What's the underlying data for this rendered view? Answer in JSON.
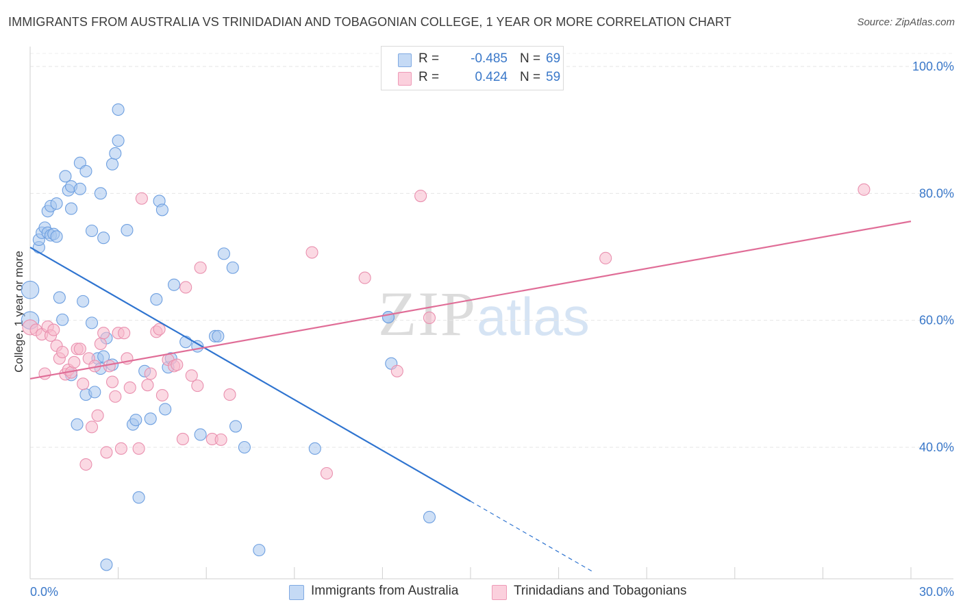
{
  "title": "IMMIGRANTS FROM AUSTRALIA VS TRINIDADIAN AND TOBAGONIAN COLLEGE, 1 YEAR OR MORE CORRELATION CHART",
  "source": "Source: ZipAtlas.com",
  "watermark": {
    "zip": "ZIP",
    "atlas": "atlas"
  },
  "legend": {
    "rows": [
      {
        "r_label": "R =",
        "r_value": "-0.485",
        "n_label": "N =",
        "n_value": "69",
        "color": "#a8c7ef"
      },
      {
        "r_label": "R =",
        "r_value": "0.424",
        "n_label": "N =",
        "n_value": "59",
        "color": "#f7b9cc"
      }
    ]
  },
  "bottom_legend": [
    {
      "label": "Immigrants from Australia",
      "color": "#a8c7ef"
    },
    {
      "label": "Trinidadians and Tobagonians",
      "color": "#f7b9cc"
    }
  ],
  "chart_data": {
    "type": "scatter",
    "title": "IMMIGRANTS FROM AUSTRALIA VS TRINIDADIAN AND TOBAGONIAN COLLEGE, 1 YEAR OR MORE CORRELATION CHART",
    "xlabel": "",
    "ylabel": "College, 1 year or more",
    "xlim": [
      0,
      30
    ],
    "ylim": [
      20,
      103
    ],
    "x_tick_labels": [
      {
        "x": 0,
        "label": "0.0%"
      },
      {
        "x": 30,
        "label": "30.0%"
      }
    ],
    "y_tick_labels": [
      {
        "y": 100,
        "label": "100.0%"
      },
      {
        "y": 80,
        "label": "80.0%"
      },
      {
        "y": 60,
        "label": "60.0%"
      },
      {
        "y": 40,
        "label": "40.0%"
      }
    ],
    "series": [
      {
        "name": "Immigrants from Australia",
        "color": "#6d9fe0",
        "fill": "#a8c7ef",
        "line_color": "#2f74d0",
        "trend": {
          "x0": 0,
          "y0": 71.5,
          "x1": 15,
          "y1": 31.5,
          "dash_to_x": 19.2,
          "dash_to_y": 20.3
        },
        "points": [
          [
            0.0,
            64.8,
            1.5
          ],
          [
            0.0,
            60.0,
            1.5
          ],
          [
            0.3,
            71.5,
            1
          ],
          [
            0.3,
            72.7,
            1
          ],
          [
            0.4,
            73.8,
            1
          ],
          [
            0.5,
            74.6,
            1
          ],
          [
            0.6,
            73.8,
            1
          ],
          [
            0.7,
            73.4,
            1
          ],
          [
            0.6,
            77.2,
            1
          ],
          [
            0.7,
            78.0,
            1
          ],
          [
            0.8,
            73.6,
            1
          ],
          [
            0.9,
            73.2,
            1
          ],
          [
            0.9,
            78.4,
            1
          ],
          [
            1.0,
            63.6,
            1
          ],
          [
            1.1,
            60.1,
            1
          ],
          [
            1.2,
            82.7,
            1
          ],
          [
            1.3,
            80.5,
            1
          ],
          [
            1.4,
            81.1,
            1
          ],
          [
            1.4,
            77.6,
            1
          ],
          [
            1.4,
            51.4,
            1
          ],
          [
            1.6,
            43.6,
            1
          ],
          [
            1.7,
            84.8,
            1
          ],
          [
            1.7,
            80.7,
            1
          ],
          [
            1.8,
            63.0,
            1
          ],
          [
            1.9,
            83.5,
            1
          ],
          [
            1.9,
            48.3,
            1
          ],
          [
            2.1,
            74.1,
            1
          ],
          [
            2.1,
            59.6,
            1
          ],
          [
            2.2,
            48.7,
            1
          ],
          [
            2.3,
            54.0,
            1
          ],
          [
            2.4,
            52.4,
            1
          ],
          [
            2.4,
            80.0,
            1
          ],
          [
            2.5,
            54.3,
            1
          ],
          [
            2.5,
            73.0,
            1
          ],
          [
            2.6,
            57.2,
            1
          ],
          [
            2.6,
            21.5,
            1
          ],
          [
            2.8,
            53.0,
            1
          ],
          [
            2.8,
            84.6,
            1
          ],
          [
            2.9,
            86.3,
            1
          ],
          [
            3.0,
            88.3,
            1
          ],
          [
            3.0,
            93.2,
            1
          ],
          [
            3.3,
            74.2,
            1
          ],
          [
            3.5,
            43.6,
            1
          ],
          [
            3.6,
            44.3,
            1
          ],
          [
            3.7,
            32.1,
            1
          ],
          [
            3.9,
            52.0,
            1
          ],
          [
            4.1,
            44.5,
            1
          ],
          [
            4.3,
            63.3,
            1
          ],
          [
            4.4,
            78.8,
            1
          ],
          [
            4.5,
            77.4,
            1
          ],
          [
            4.6,
            46.0,
            1
          ],
          [
            4.7,
            52.6,
            1
          ],
          [
            4.8,
            54.0,
            1
          ],
          [
            4.9,
            65.6,
            1
          ],
          [
            5.3,
            56.6,
            1
          ],
          [
            5.7,
            55.9,
            1
          ],
          [
            5.8,
            42.0,
            1
          ],
          [
            6.3,
            57.5,
            1
          ],
          [
            6.4,
            57.5,
            1
          ],
          [
            6.6,
            70.5,
            1
          ],
          [
            6.9,
            68.3,
            1
          ],
          [
            7.0,
            43.3,
            1
          ],
          [
            7.3,
            40.0,
            1
          ],
          [
            7.8,
            23.8,
            1
          ],
          [
            9.7,
            39.8,
            1
          ],
          [
            12.2,
            60.5,
            1
          ],
          [
            12.3,
            53.2,
            1
          ],
          [
            13.6,
            29.0,
            1
          ],
          [
            12.2,
            60.5,
            1
          ]
        ]
      },
      {
        "name": "Trinidadians and Tobagonians",
        "color": "#e98fae",
        "fill": "#f7b9cc",
        "line_color": "#e06d97",
        "trend": {
          "x0": 0,
          "y0": 50.8,
          "x1": 30,
          "y1": 75.6
        },
        "points": [
          [
            0.0,
            58.9,
            1.3
          ],
          [
            0.2,
            58.5,
            1
          ],
          [
            0.4,
            57.8,
            1
          ],
          [
            0.5,
            51.6,
            1
          ],
          [
            0.6,
            59.0,
            1
          ],
          [
            0.7,
            57.6,
            1
          ],
          [
            0.8,
            58.5,
            1
          ],
          [
            0.9,
            56.0,
            1
          ],
          [
            1.0,
            54.0,
            1
          ],
          [
            1.1,
            55.0,
            1
          ],
          [
            1.2,
            51.5,
            1
          ],
          [
            1.3,
            52.2,
            1
          ],
          [
            1.4,
            51.8,
            1
          ],
          [
            1.5,
            53.4,
            1
          ],
          [
            1.6,
            55.5,
            1
          ],
          [
            1.7,
            55.5,
            1
          ],
          [
            1.8,
            50.0,
            1
          ],
          [
            1.9,
            37.3,
            1
          ],
          [
            2.0,
            54.0,
            1
          ],
          [
            2.1,
            43.2,
            1
          ],
          [
            2.2,
            52.8,
            1
          ],
          [
            2.3,
            45.0,
            1
          ],
          [
            2.4,
            56.3,
            1
          ],
          [
            2.5,
            58.0,
            1
          ],
          [
            2.6,
            39.2,
            1
          ],
          [
            2.7,
            52.8,
            1
          ],
          [
            2.8,
            50.3,
            1
          ],
          [
            2.9,
            48.0,
            1
          ],
          [
            3.0,
            58.0,
            1
          ],
          [
            3.1,
            39.8,
            1
          ],
          [
            3.2,
            58.0,
            1
          ],
          [
            3.3,
            54.0,
            1
          ],
          [
            3.4,
            49.4,
            1
          ],
          [
            3.7,
            39.8,
            1
          ],
          [
            3.8,
            79.2,
            1
          ],
          [
            4.0,
            49.8,
            1
          ],
          [
            4.1,
            51.6,
            1
          ],
          [
            4.3,
            58.2,
            1
          ],
          [
            4.4,
            58.6,
            1
          ],
          [
            4.5,
            48.2,
            1
          ],
          [
            4.7,
            53.8,
            1
          ],
          [
            4.9,
            52.8,
            1
          ],
          [
            5.0,
            53.0,
            1
          ],
          [
            5.2,
            41.3,
            1
          ],
          [
            5.3,
            65.2,
            1
          ],
          [
            5.5,
            51.3,
            1
          ],
          [
            5.7,
            49.7,
            1
          ],
          [
            5.8,
            68.3,
            1
          ],
          [
            6.2,
            41.3,
            1
          ],
          [
            6.5,
            41.2,
            1
          ],
          [
            6.8,
            48.3,
            1
          ],
          [
            9.6,
            70.7,
            1
          ],
          [
            10.1,
            35.9,
            1
          ],
          [
            11.4,
            66.7,
            1
          ],
          [
            12.5,
            52.0,
            1
          ],
          [
            13.3,
            79.6,
            1
          ],
          [
            13.6,
            60.4,
            1
          ],
          [
            19.6,
            69.8,
            1
          ],
          [
            28.4,
            80.6,
            1
          ]
        ]
      }
    ]
  }
}
